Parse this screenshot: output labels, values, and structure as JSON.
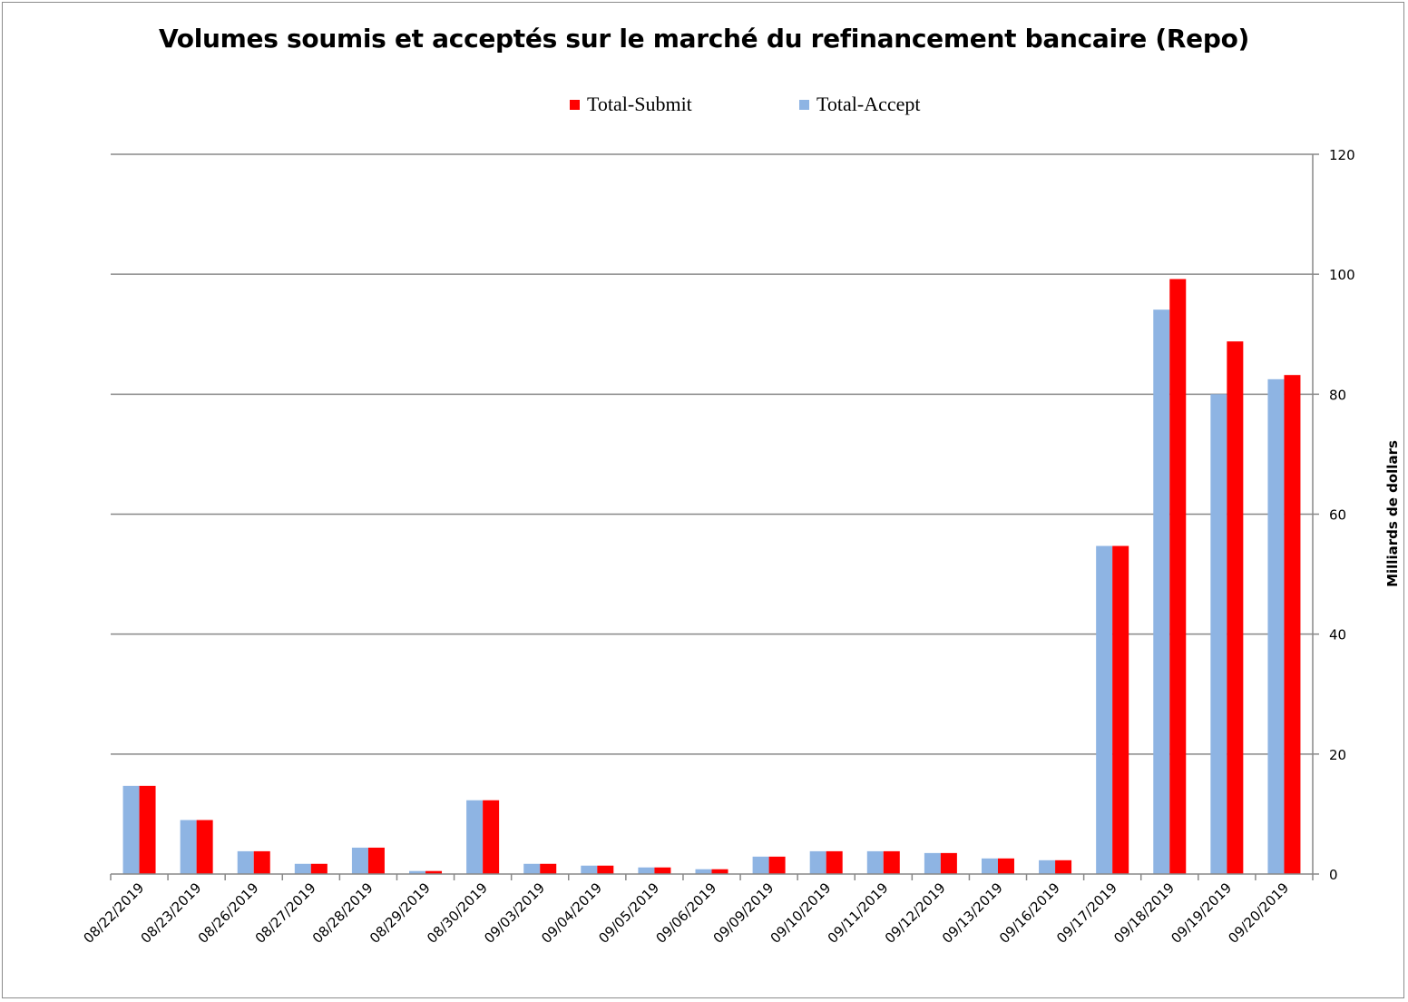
{
  "chart_data": {
    "type": "bar",
    "title": "Volumes soumis et acceptés sur le marché du refinancement bancaire (Repo)",
    "ylabel": "Milliards de dollars",
    "xlabel": "",
    "ylim": [
      0,
      120
    ],
    "yticks": [
      0,
      20,
      40,
      60,
      80,
      100,
      120
    ],
    "grid": true,
    "legend_position": "top",
    "y_axis_side": "right",
    "categories": [
      "08/22/2019",
      "08/23/2019",
      "08/26/2019",
      "08/27/2019",
      "08/28/2019",
      "08/29/2019",
      "08/30/2019",
      "09/03/2019",
      "09/04/2019",
      "09/05/2019",
      "09/06/2019",
      "09/09/2019",
      "09/10/2019",
      "09/11/2019",
      "09/12/2019",
      "09/13/2019",
      "09/16/2019",
      "09/17/2019",
      "09/18/2019",
      "09/19/2019",
      "09/20/2019"
    ],
    "series": [
      {
        "name": "Total-Accept",
        "color": "#8eb4e3",
        "values": [
          14.7,
          9,
          3.8,
          1.7,
          4.4,
          0.5,
          12.3,
          1.7,
          1.4,
          1.1,
          0.8,
          2.9,
          3.8,
          3.8,
          3.5,
          2.6,
          2.3,
          54.7,
          94.1,
          80,
          82.5
        ]
      },
      {
        "name": "Total-Submit",
        "color": "#ff0000",
        "values": [
          14.7,
          9,
          3.8,
          1.7,
          4.4,
          0.5,
          12.3,
          1.7,
          1.4,
          1.1,
          0.8,
          2.9,
          3.8,
          3.8,
          3.5,
          2.6,
          2.3,
          54.7,
          99.2,
          88.8,
          83.2
        ]
      }
    ],
    "legend": [
      {
        "name": "Total-Submit",
        "color": "#ff0000"
      },
      {
        "name": "Total-Accept",
        "color": "#8eb4e3"
      }
    ]
  }
}
